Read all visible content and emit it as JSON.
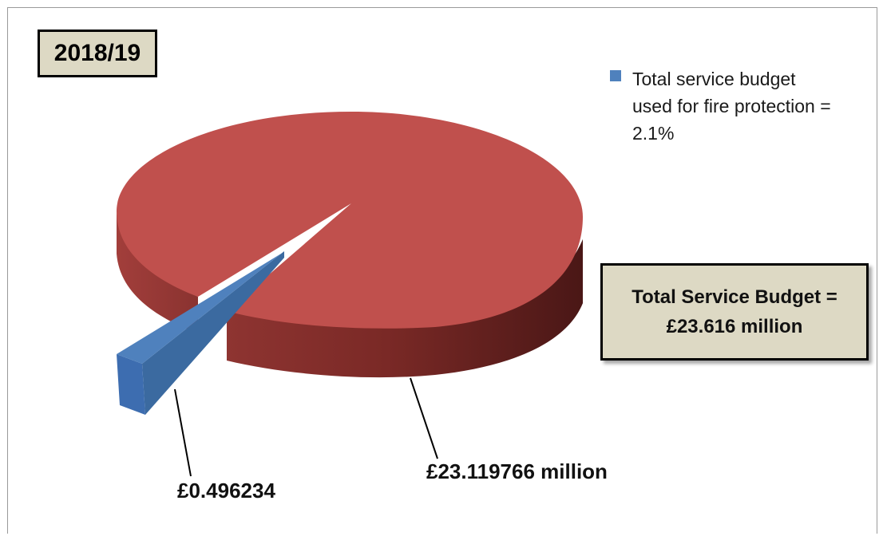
{
  "year_badge": "2018/19",
  "legend": {
    "entries": [
      {
        "label": "Total service budget used for fire protection = 2.1%",
        "color": "#4f81bd"
      }
    ]
  },
  "total_box": {
    "line1": "Total Service Budget =",
    "line2": "£23.616 million"
  },
  "chart_data": {
    "type": "pie",
    "style": "3d-exploded",
    "title": "",
    "slices": [
      {
        "name": "Total service budget used for fire protection = 2.1%",
        "value": 0.496234,
        "label": "£0.496234",
        "color": "#4f81bd",
        "exploded": true
      },
      {
        "name": "",
        "value": 23.119766,
        "label": "£23.119766 million",
        "color": "#c0504d",
        "exploded": false
      }
    ],
    "total": 23.616,
    "legend_position": "top-right"
  }
}
